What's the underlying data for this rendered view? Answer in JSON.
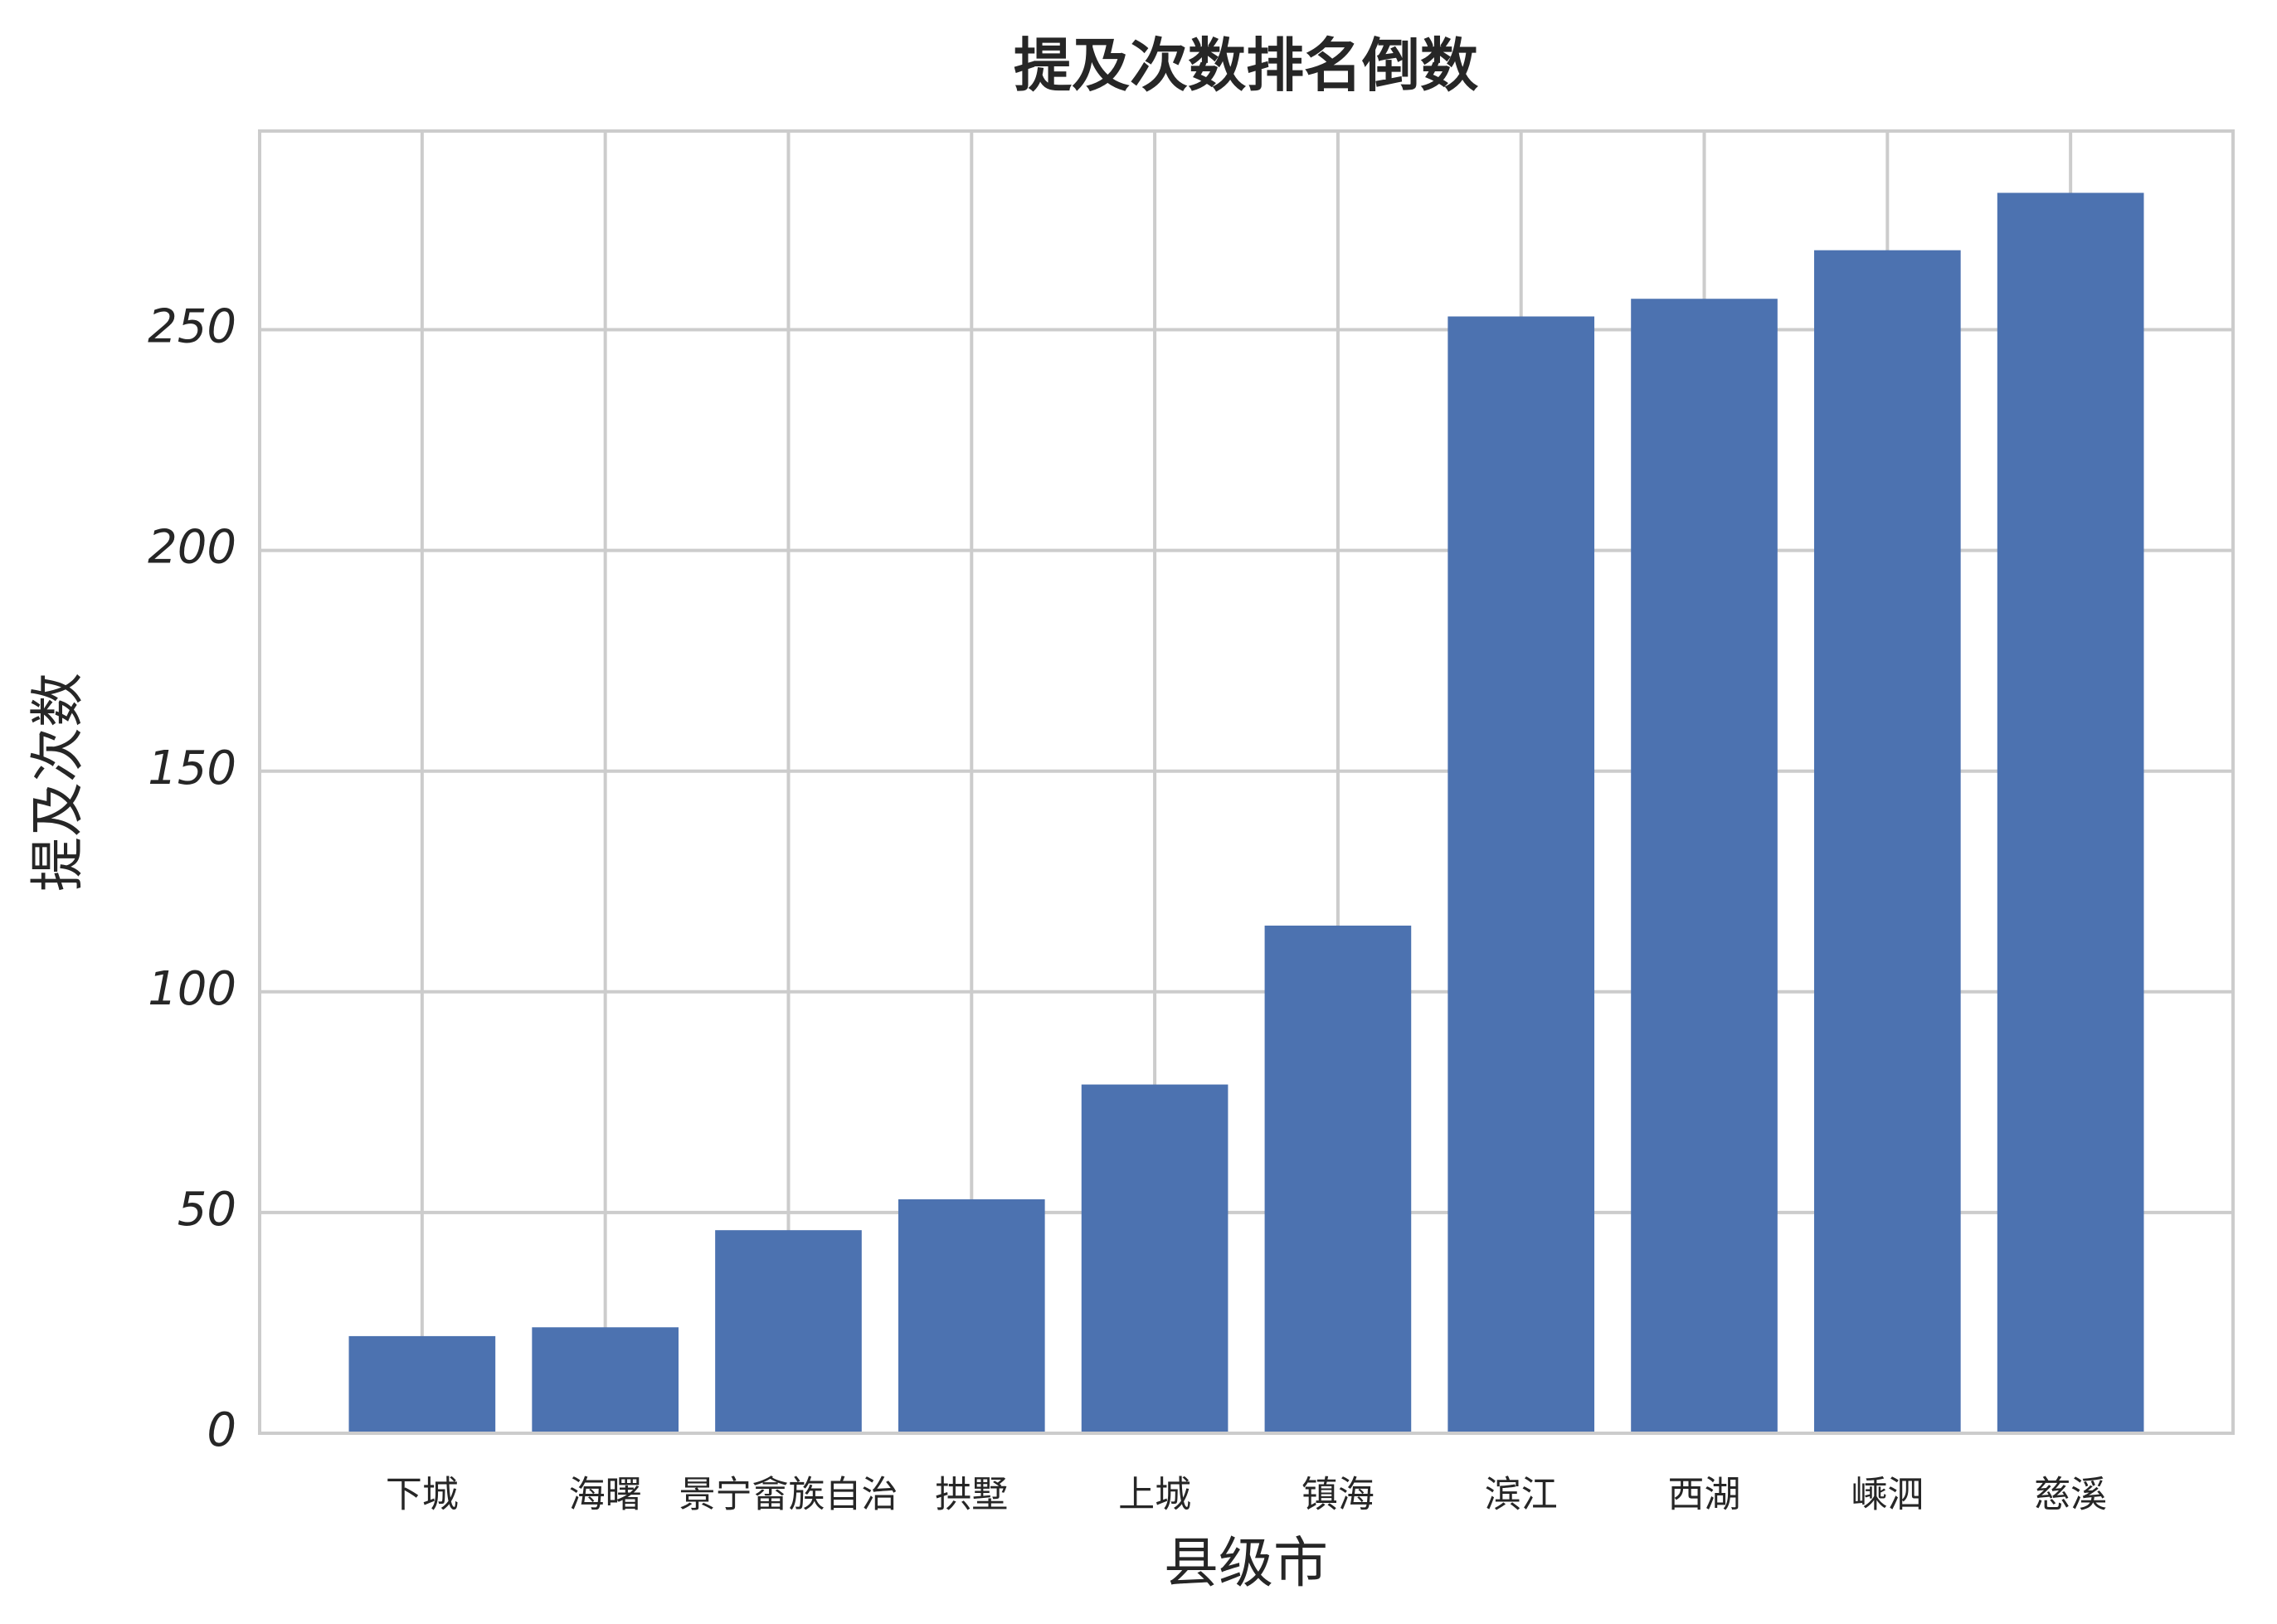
{
  "chart_data": {
    "type": "bar",
    "title": "提及次数排名倒数",
    "x_label": "县级市",
    "y_label": "提及次数",
    "categories": [
      "下城",
      "海曙",
      "景宁畲族自治",
      "拱墅",
      "上城",
      "镇海",
      "滨江",
      "西湖",
      "嵊泗",
      "慈溪"
    ],
    "values": [
      22,
      24,
      46,
      53,
      79,
      115,
      253,
      257,
      268,
      281
    ],
    "color": "#4c72b0",
    "ylim": [
      0,
      295
    ],
    "yticks": [
      0,
      50,
      100,
      150,
      200,
      250
    ],
    "grid": true
  }
}
